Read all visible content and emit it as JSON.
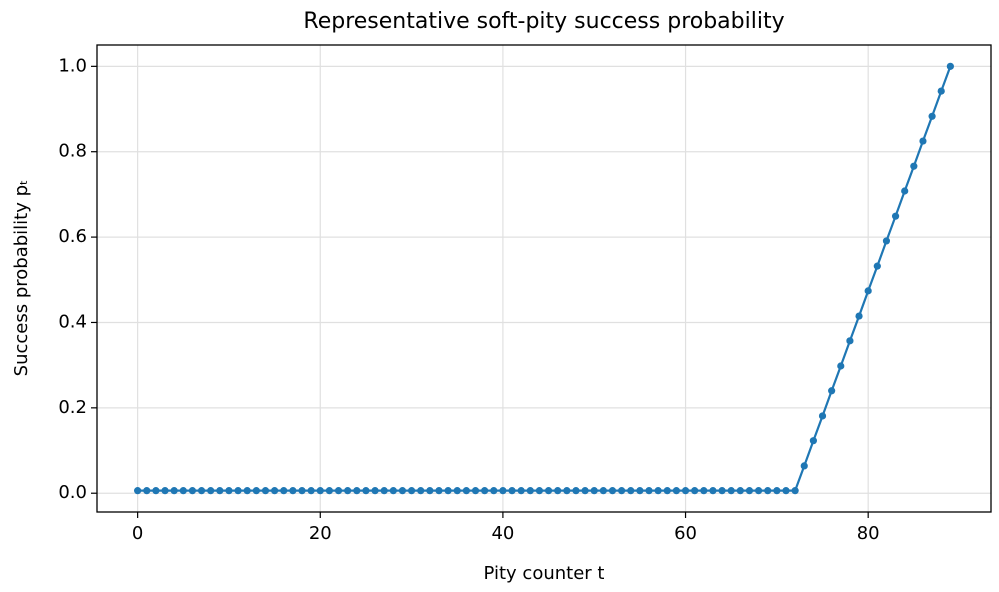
{
  "chart_data": {
    "type": "line",
    "title": "Representative soft-pity success probability",
    "xlabel": "Pity counter t",
    "ylabel": "Success probability pₜ",
    "x": [
      0,
      1,
      2,
      3,
      4,
      5,
      6,
      7,
      8,
      9,
      10,
      11,
      12,
      13,
      14,
      15,
      16,
      17,
      18,
      19,
      20,
      21,
      22,
      23,
      24,
      25,
      26,
      27,
      28,
      29,
      30,
      31,
      32,
      33,
      34,
      35,
      36,
      37,
      38,
      39,
      40,
      41,
      42,
      43,
      44,
      45,
      46,
      47,
      48,
      49,
      50,
      51,
      52,
      53,
      54,
      55,
      56,
      57,
      58,
      59,
      60,
      61,
      62,
      63,
      64,
      65,
      66,
      67,
      68,
      69,
      70,
      71,
      72,
      73,
      74,
      75,
      76,
      77,
      78,
      79,
      80,
      81,
      82,
      83,
      84,
      85,
      86,
      87,
      88,
      89
    ],
    "series": [
      {
        "color": "#1f77b4",
        "values": [
          0.006,
          0.006,
          0.006,
          0.006,
          0.006,
          0.006,
          0.006,
          0.006,
          0.006,
          0.006,
          0.006,
          0.006,
          0.006,
          0.006,
          0.006,
          0.006,
          0.006,
          0.006,
          0.006,
          0.006,
          0.006,
          0.006,
          0.006,
          0.006,
          0.006,
          0.006,
          0.006,
          0.006,
          0.006,
          0.006,
          0.006,
          0.006,
          0.006,
          0.006,
          0.006,
          0.006,
          0.006,
          0.006,
          0.006,
          0.006,
          0.006,
          0.006,
          0.006,
          0.006,
          0.006,
          0.006,
          0.006,
          0.006,
          0.006,
          0.006,
          0.006,
          0.006,
          0.006,
          0.006,
          0.006,
          0.006,
          0.006,
          0.006,
          0.006,
          0.006,
          0.006,
          0.006,
          0.006,
          0.006,
          0.006,
          0.006,
          0.006,
          0.006,
          0.006,
          0.006,
          0.006,
          0.006,
          0.006,
          0.064,
          0.123,
          0.181,
          0.24,
          0.298,
          0.357,
          0.415,
          0.474,
          0.532,
          0.591,
          0.649,
          0.708,
          0.766,
          0.825,
          0.883,
          0.942,
          1.0
        ]
      }
    ],
    "xlim": [
      -4.45,
      93.45
    ],
    "ylim": [
      -0.044,
      1.05
    ],
    "xticks": [
      0,
      20,
      40,
      60,
      80
    ],
    "yticks": [
      {
        "value": 0,
        "label": "0.0"
      },
      {
        "value": 0.2,
        "label": "0.2"
      },
      {
        "value": 0.4,
        "label": "0.4"
      },
      {
        "value": 0.6,
        "label": "0.6"
      },
      {
        "value": 0.8,
        "label": "0.8"
      },
      {
        "value": 1,
        "label": "1.0"
      }
    ],
    "grid": true
  }
}
